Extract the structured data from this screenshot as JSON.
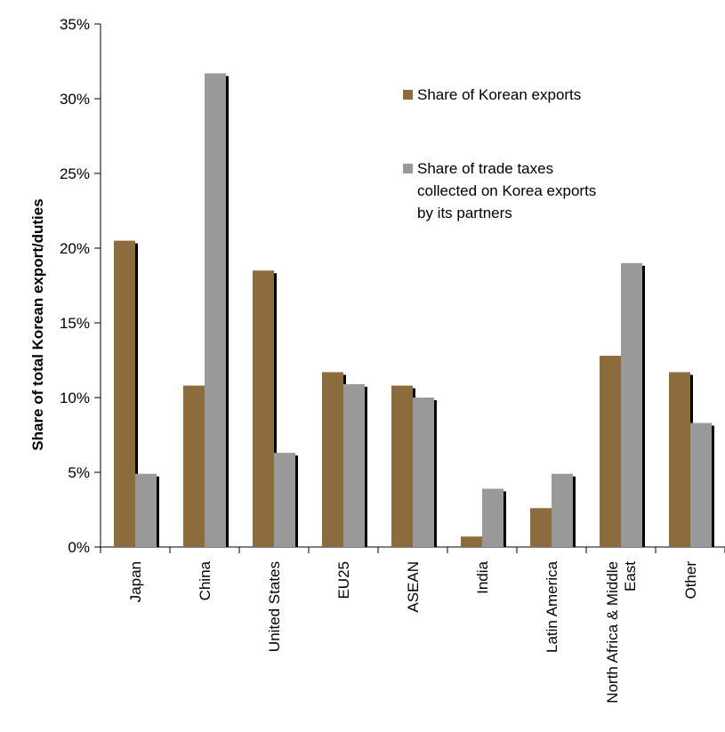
{
  "chart_data": {
    "type": "bar",
    "title": "",
    "xlabel": "",
    "ylabel": "Share of total Korean export/duties",
    "ylim": [
      0,
      35
    ],
    "yticks": [
      0,
      5,
      10,
      15,
      20,
      25,
      30,
      35
    ],
    "ytick_labels": [
      "0%",
      "5%",
      "10%",
      "15%",
      "20%",
      "25%",
      "30%",
      "35%"
    ],
    "grid": false,
    "legend_position": "top-right",
    "categories": [
      [
        "Japan"
      ],
      [
        "China"
      ],
      [
        "United States"
      ],
      [
        "EU25"
      ],
      [
        "ASEAN"
      ],
      [
        "India"
      ],
      [
        "Latin America"
      ],
      [
        "North Africa & Middle",
        "East"
      ],
      [
        "Other"
      ]
    ],
    "series": [
      {
        "name": "Share of Korean exports",
        "legend_lines": [
          "Share of Korean exports"
        ],
        "color": "#8c6b3c",
        "values": [
          20.5,
          10.8,
          18.5,
          11.7,
          10.8,
          0.7,
          2.6,
          12.8,
          11.7
        ]
      },
      {
        "name": "Share of trade taxes collected on Korea exports by its partners",
        "legend_lines": [
          "Share of trade taxes",
          "collected on Korea exports",
          "by its partners"
        ],
        "color": "#999999",
        "values": [
          4.9,
          31.7,
          6.3,
          10.9,
          10.0,
          3.9,
          4.9,
          19.0,
          8.3
        ]
      }
    ],
    "shadow_color": "#000000"
  }
}
